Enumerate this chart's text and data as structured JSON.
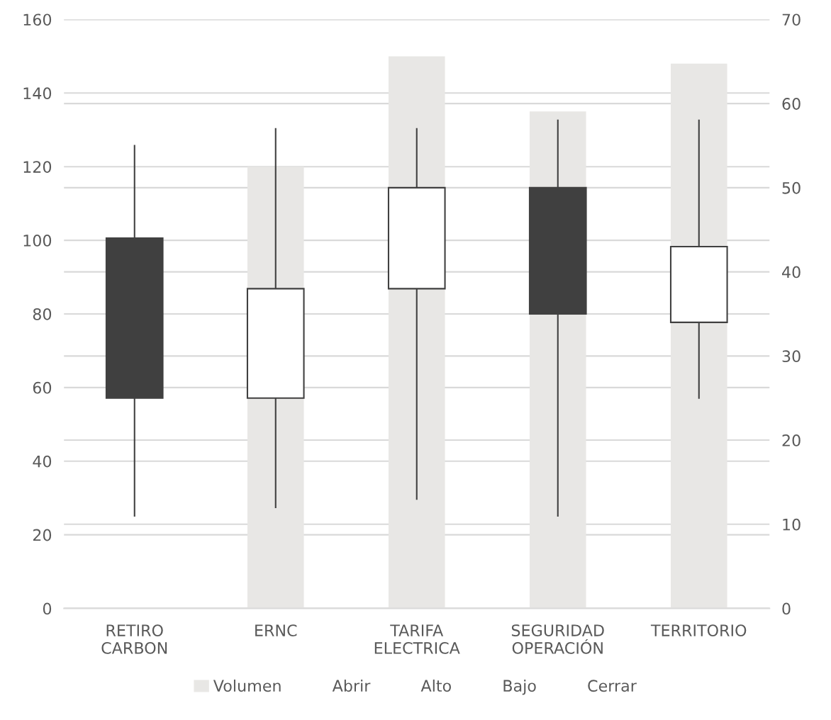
{
  "chart_data": {
    "type": "candlestick",
    "categories": [
      "RETIRO\nCARBON",
      "ERNC",
      "TARIFA\nELECTRICA",
      "SEGURIDAD\nOPERACIÓN",
      "TERRITORIO"
    ],
    "series": [
      {
        "name": "Volumen",
        "type": "bar",
        "axis": "y",
        "color": "#e8e7e5",
        "values": [
          null,
          120,
          150,
          135,
          148
        ]
      },
      {
        "axis": "y2",
        "ohlc": [
          [
            44,
            55,
            11,
            25
          ],
          [
            25,
            57,
            12,
            38
          ],
          [
            38,
            57,
            13,
            50
          ],
          [
            50,
            58,
            11,
            35
          ],
          [
            34,
            58,
            25,
            43
          ]
        ],
        "colors": [
          "#404040",
          "#ffffff",
          "#ffffff",
          "#404040",
          "#ffffff"
        ]
      }
    ],
    "annotations": [
      "Abrir",
      "Alto",
      "Bajo",
      "Cerrar"
    ],
    "ylim": [
      0,
      160
    ],
    "yticks": [
      0,
      20,
      40,
      60,
      80,
      100,
      120,
      140,
      160
    ],
    "y2lim": [
      0,
      70
    ],
    "y2ticks": [
      0,
      10,
      20,
      30,
      40,
      50,
      60,
      70
    ],
    "grid": true,
    "legend": "bottom"
  }
}
